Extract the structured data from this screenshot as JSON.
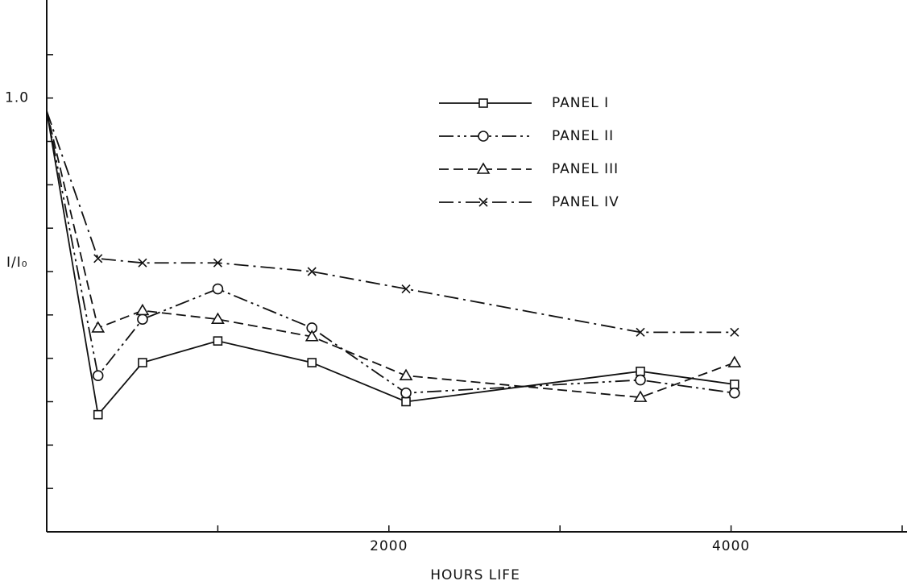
{
  "chart_data": {
    "type": "line",
    "xlabel": "HOURS LIFE",
    "ylabel": "I/I₀",
    "xlim": [
      0,
      5000
    ],
    "ylim": [
      0,
      1.2
    ],
    "xticks": [
      2000,
      4000
    ],
    "xminorticks": [
      1000,
      3000,
      5000
    ],
    "yticks": [
      {
        "value": 1,
        "label": "1.0"
      }
    ],
    "yminorticks": [
      0.1,
      0.2,
      0.3,
      0.4,
      0.5,
      0.6,
      0.7,
      0.8,
      0.9,
      1.1
    ],
    "legend": "upper center",
    "series": [
      {
        "name": "PANEL I",
        "color": "#111111",
        "dash": "solid",
        "marker": "square",
        "x": [
          0,
          300,
          560,
          1000,
          1550,
          2100,
          3470,
          4020
        ],
        "values": [
          0.97,
          0.27,
          0.39,
          0.44,
          0.39,
          0.3,
          0.37,
          0.34
        ]
      },
      {
        "name": "PANEL II",
        "color": "#111111",
        "dash": "dash-dot-dot",
        "marker": "circle",
        "x": [
          0,
          300,
          560,
          1000,
          1550,
          2100,
          3470,
          4020
        ],
        "values": [
          0.97,
          0.36,
          0.49,
          0.56,
          0.47,
          0.32,
          0.35,
          0.32
        ]
      },
      {
        "name": "PANEL III",
        "color": "#111111",
        "dash": "dashed",
        "marker": "triangle",
        "x": [
          0,
          300,
          560,
          1000,
          1550,
          2100,
          3470,
          4020
        ],
        "values": [
          0.97,
          0.47,
          0.51,
          0.49,
          0.45,
          0.36,
          0.31,
          0.39
        ]
      },
      {
        "name": "PANEL IV",
        "color": "#111111",
        "dash": "dash-dot",
        "marker": "x",
        "x": [
          0,
          300,
          560,
          1000,
          1550,
          2100,
          3470,
          4020
        ],
        "values": [
          0.97,
          0.63,
          0.62,
          0.62,
          0.6,
          0.56,
          0.46,
          0.46
        ]
      }
    ]
  }
}
